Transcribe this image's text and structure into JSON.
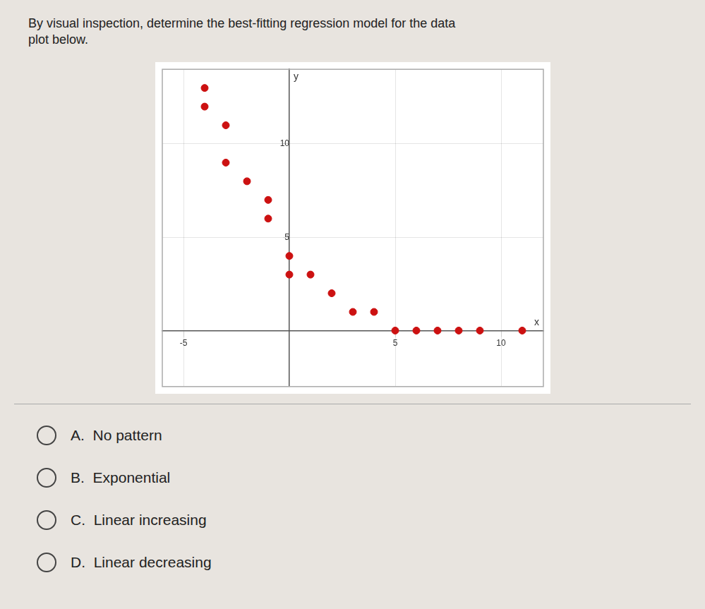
{
  "chart_data": {
    "type": "scatter",
    "title": "By visual inspection, determine the best-fitting regression model for the data\nplot below.",
    "x": [
      -4,
      -4,
      -3,
      -3,
      -2,
      -1,
      -1,
      0,
      0,
      1,
      2,
      3,
      4,
      5,
      6,
      7,
      8,
      9,
      11
    ],
    "values": [
      13,
      12,
      11,
      9,
      8,
      7,
      6,
      4,
      3,
      3,
      2,
      1,
      1,
      0,
      0,
      0,
      0,
      0,
      0
    ],
    "color": "#cc1111",
    "xlim": [
      -6,
      12
    ],
    "ylim": [
      -3,
      14
    ],
    "xticks": [
      -5,
      5,
      10
    ],
    "yticks": [
      5,
      10
    ],
    "xlabel": "x",
    "ylabel": "y",
    "grid": true,
    "annotations": [
      "A.  No pattern",
      "B.  Exponential",
      "C.  Linear increasing",
      "D.  Linear decreasing"
    ]
  }
}
